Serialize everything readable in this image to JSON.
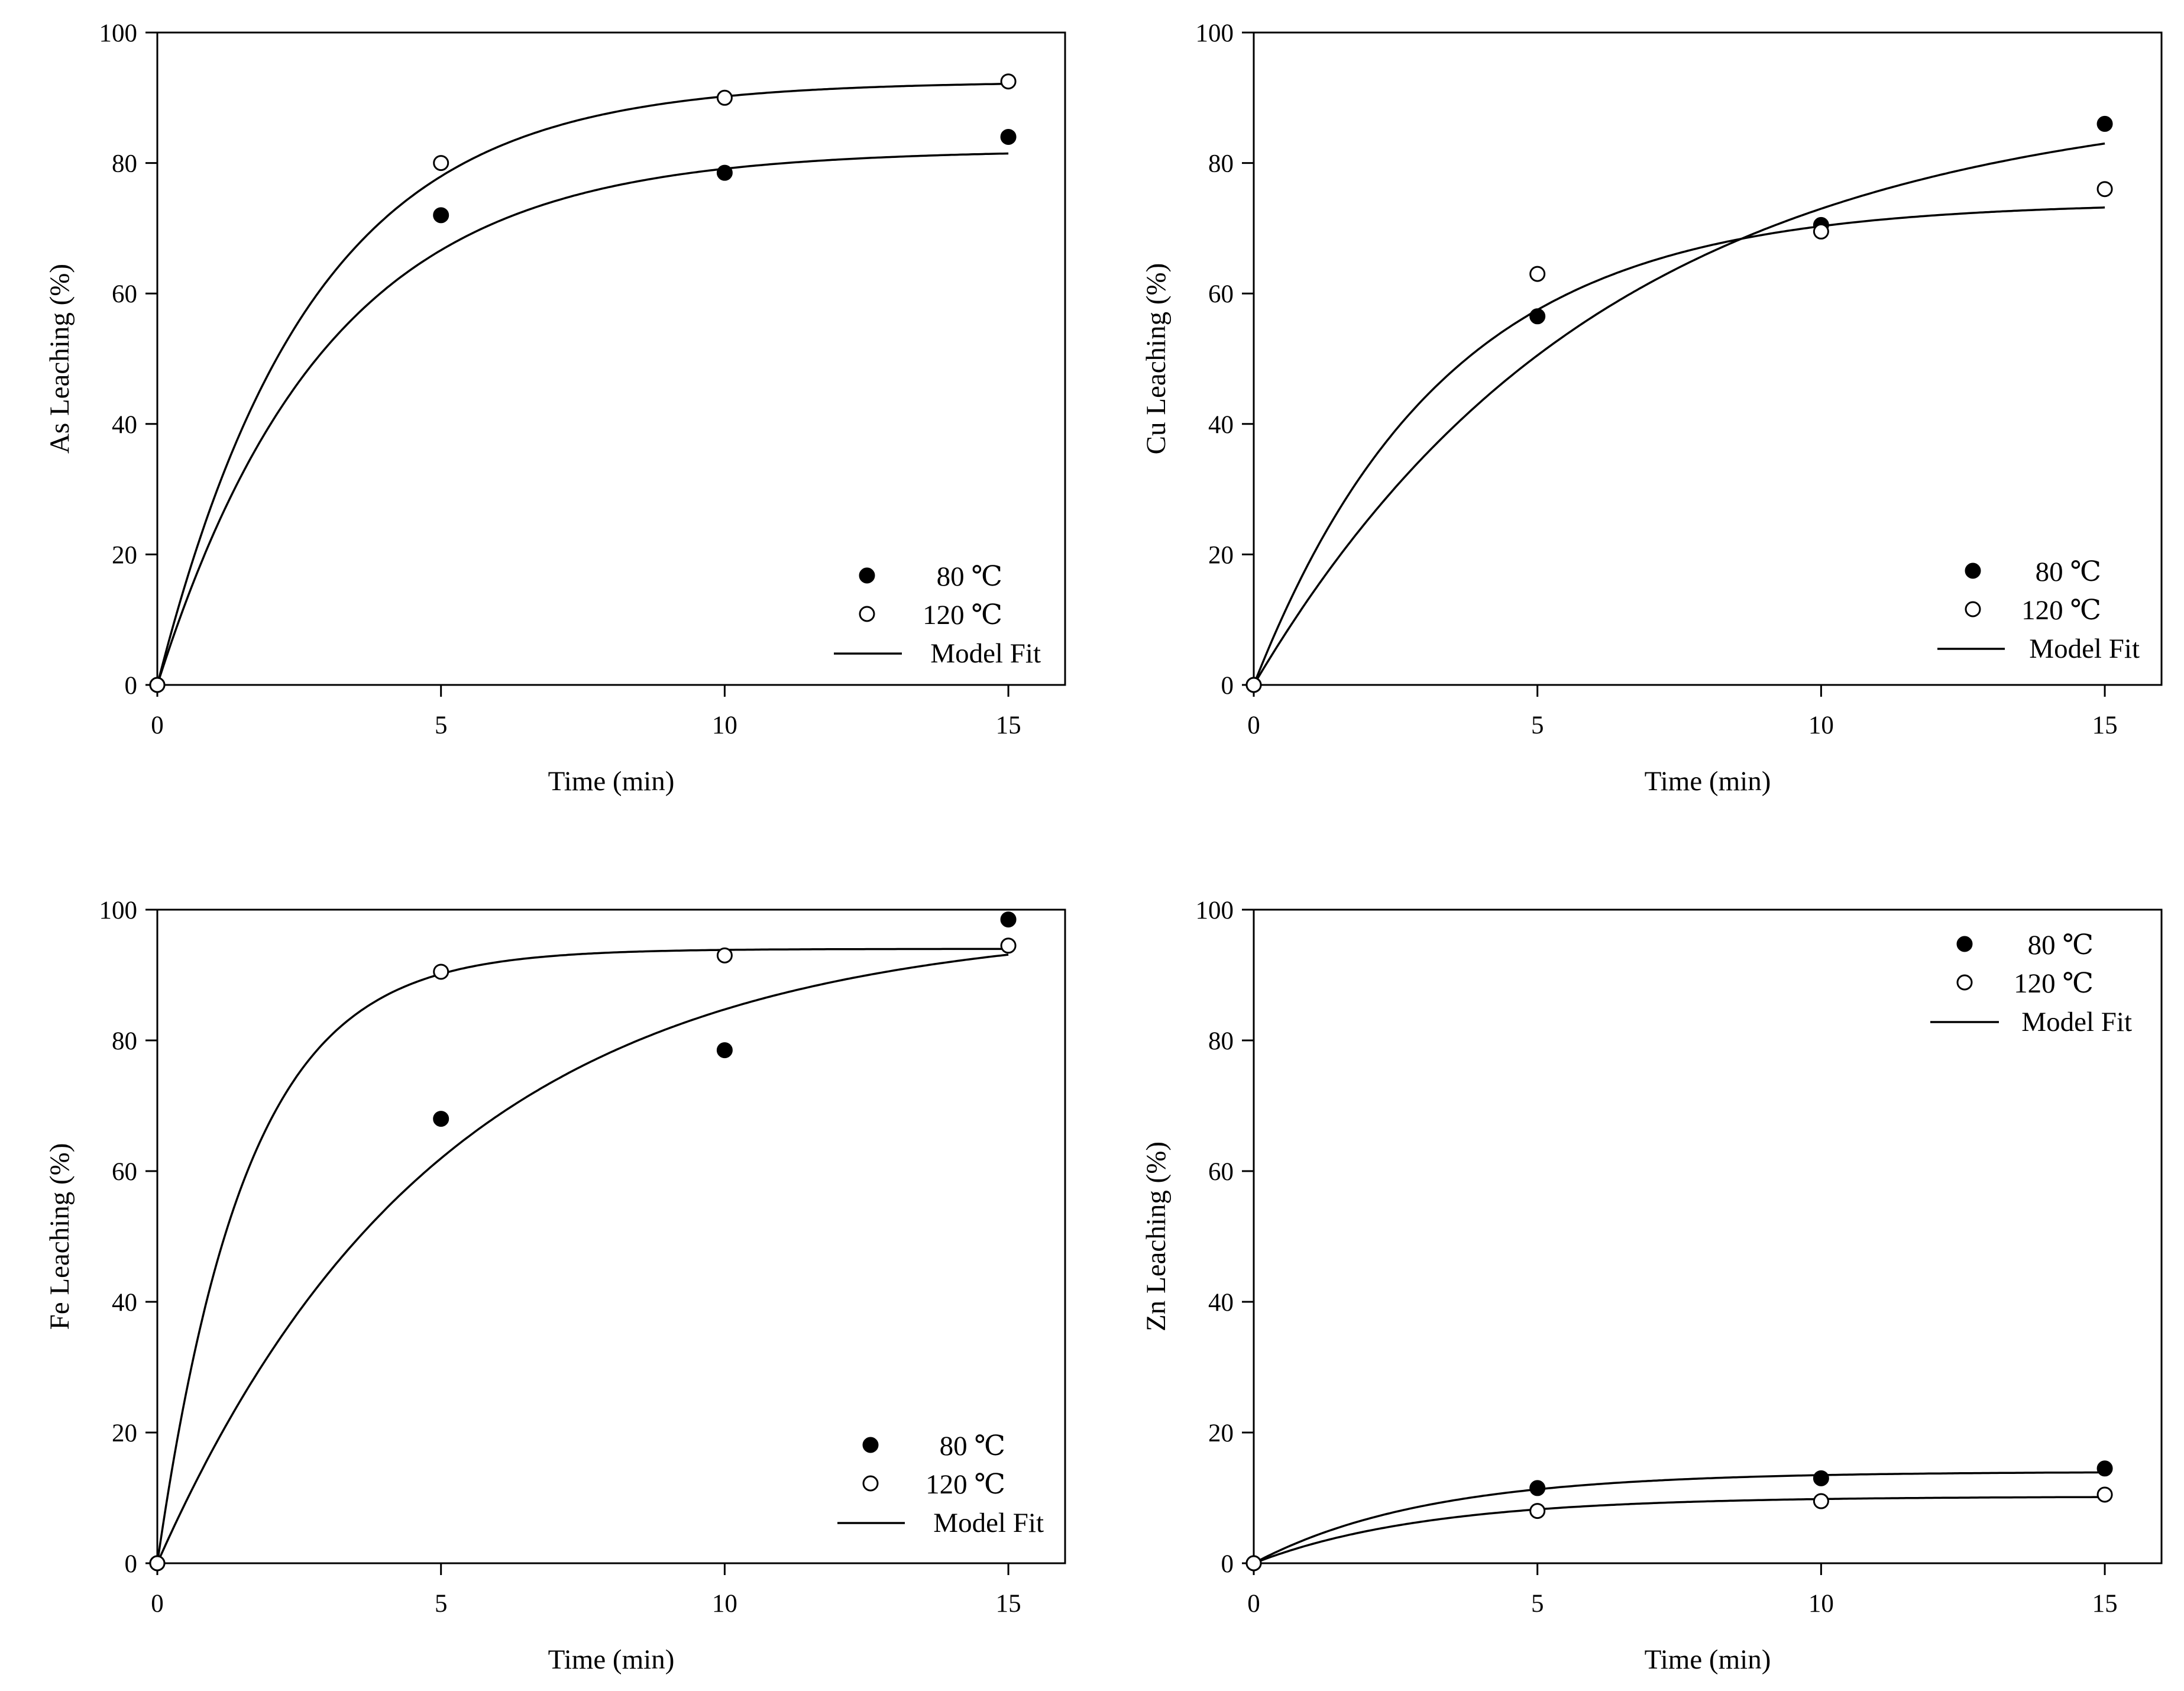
{
  "chart_data": [
    {
      "type": "scatter",
      "panel": "top-left",
      "title": "",
      "xlabel": "Time (min)",
      "ylabel": "As Leaching (%)",
      "xlim": [
        0,
        16
      ],
      "ylim": [
        0,
        100
      ],
      "xticks": [
        0,
        5,
        10,
        15
      ],
      "yticks": [
        0,
        20,
        40,
        60,
        80,
        100
      ],
      "grid": false,
      "legend_position": "bottom-right",
      "series": [
        {
          "name": "80 ℃",
          "marker": "filled-circle",
          "x": [
            0,
            5,
            10,
            15
          ],
          "y": [
            0,
            72,
            78.5,
            84
          ]
        },
        {
          "name": "120 ℃",
          "marker": "open-circle",
          "x": [
            0,
            5,
            10,
            15
          ],
          "y": [
            0,
            80,
            90,
            92.5
          ]
        }
      ],
      "model_fit": {
        "name": "Model Fit",
        "curves": [
          {
            "for": "80 ℃",
            "a": 82,
            "k": 0.335
          },
          {
            "for": "120 ℃",
            "a": 92.5,
            "k": 0.37
          }
        ]
      }
    },
    {
      "type": "scatter",
      "panel": "top-right",
      "title": "",
      "xlabel": "Time (min)",
      "ylabel": "Cu Leaching (%)",
      "xlim": [
        0,
        16
      ],
      "ylim": [
        0,
        100
      ],
      "xticks": [
        0,
        5,
        10,
        15
      ],
      "yticks": [
        0,
        20,
        40,
        60,
        80,
        100
      ],
      "grid": false,
      "legend_position": "bottom-right",
      "series": [
        {
          "name": "80 ℃",
          "marker": "filled-circle",
          "x": [
            0,
            5,
            10,
            15
          ],
          "y": [
            0,
            56.5,
            70.5,
            86
          ]
        },
        {
          "name": "120 ℃",
          "marker": "open-circle",
          "x": [
            0,
            5,
            10,
            15
          ],
          "y": [
            0,
            63,
            69.5,
            76
          ]
        }
      ],
      "model_fit": {
        "name": "Model Fit",
        "curves": [
          {
            "for": "80 ℃",
            "a": 91,
            "k": 0.162
          },
          {
            "for": "120 ℃",
            "a": 74,
            "k": 0.3
          }
        ]
      }
    },
    {
      "type": "scatter",
      "panel": "bottom-left",
      "title": "",
      "xlabel": "Time (min)",
      "ylabel": "Fe Leaching (%)",
      "xlim": [
        0,
        16
      ],
      "ylim": [
        0,
        100
      ],
      "xticks": [
        0,
        5,
        10,
        15
      ],
      "yticks": [
        0,
        20,
        40,
        60,
        80,
        100
      ],
      "grid": false,
      "legend_position": "bottom-right",
      "series": [
        {
          "name": "80 ℃",
          "marker": "filled-circle",
          "x": [
            0,
            5,
            10,
            15
          ],
          "y": [
            0,
            68,
            78.5,
            98.5
          ]
        },
        {
          "name": "120 ℃",
          "marker": "open-circle",
          "x": [
            0,
            5,
            10,
            15
          ],
          "y": [
            0,
            90.5,
            93,
            94.5
          ]
        }
      ],
      "model_fit": {
        "name": "Model Fit",
        "curves": [
          {
            "for": "80 ℃",
            "a": 98,
            "k": 0.2
          },
          {
            "for": "120 ℃",
            "a": 94,
            "k": 0.64
          }
        ]
      }
    },
    {
      "type": "scatter",
      "panel": "bottom-right",
      "title": "",
      "xlabel": "Time (min)",
      "ylabel": "Zn Leaching (%)",
      "xlim": [
        0,
        16
      ],
      "ylim": [
        0,
        100
      ],
      "xticks": [
        0,
        5,
        10,
        15
      ],
      "yticks": [
        0,
        20,
        40,
        60,
        80,
        100
      ],
      "grid": false,
      "legend_position": "top-right",
      "series": [
        {
          "name": "80 ℃",
          "marker": "filled-circle",
          "x": [
            0,
            5,
            10,
            15
          ],
          "y": [
            0,
            11.5,
            13,
            14.5
          ]
        },
        {
          "name": "120 ℃",
          "marker": "open-circle",
          "x": [
            0,
            5,
            10,
            15
          ],
          "y": [
            0,
            8,
            9.5,
            10.5
          ]
        }
      ],
      "model_fit": {
        "name": "Model Fit",
        "curves": [
          {
            "for": "80 ℃",
            "a": 14,
            "k": 0.33
          },
          {
            "for": "120 ℃",
            "a": 10.2,
            "k": 0.33
          }
        ]
      }
    }
  ]
}
